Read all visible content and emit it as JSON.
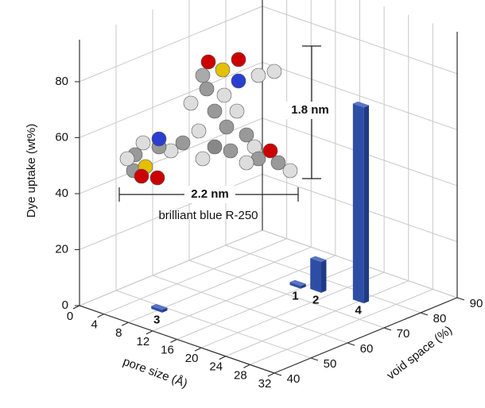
{
  "chart_data": {
    "type": "bar3d",
    "zlabel": "Dye uptake (wt%)",
    "xlabel": "pore size (Å)",
    "ylabel": "void space (%)",
    "xlim": [
      0,
      32
    ],
    "xticks": [
      0,
      4,
      8,
      12,
      16,
      20,
      24,
      28,
      32
    ],
    "ylim": [
      40,
      90
    ],
    "yticks": [
      40,
      50,
      60,
      70,
      80,
      90
    ],
    "zlim": [
      0,
      95
    ],
    "zticks": [
      0,
      20,
      40,
      60,
      80
    ],
    "grid": true,
    "color": "#2e4ea6",
    "bars": [
      {
        "label": "1",
        "pore": 15.2,
        "void": 74.4,
        "uptake": 1
      },
      {
        "label": "2",
        "pore": 17.9,
        "void": 75.5,
        "uptake": 11
      },
      {
        "label": "3",
        "pore": 8,
        "void": 48.5,
        "uptake": 1
      },
      {
        "label": "4",
        "pore": 24,
        "void": 77,
        "uptake": 70
      }
    ],
    "annotations": {
      "height": "1.8 nm",
      "width": "2.2 nm",
      "molecule": "brilliant blue R-250"
    }
  }
}
